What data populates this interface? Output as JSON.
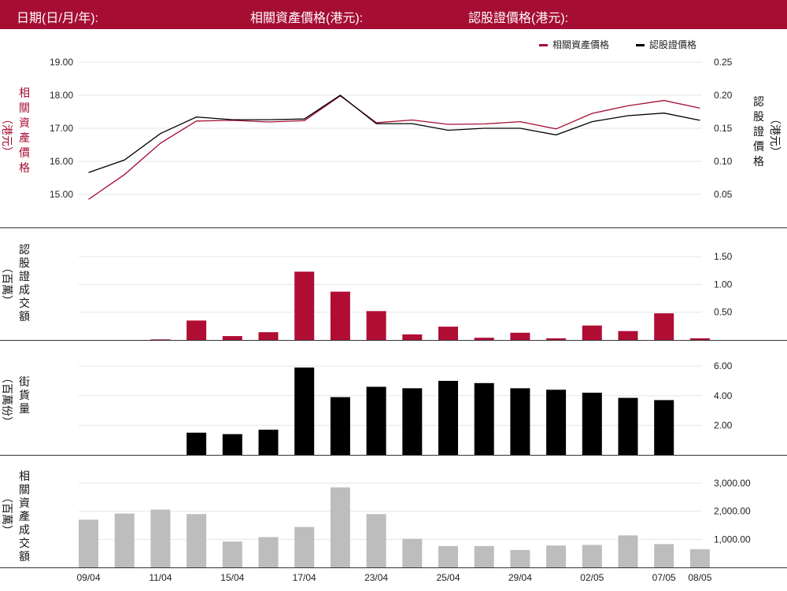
{
  "header": {
    "date_label": "日期(日/月/年):",
    "underlying_label": "相關資產價格(港元):",
    "warrant_label": "認股證價格(港元):"
  },
  "colors": {
    "header_bg": "#a50d33",
    "underlying": "#a50d33",
    "warrant": "#000000",
    "turnover_bar": "#b00d35",
    "outstanding_bar": "#000000",
    "underlying_turnover_bar": "#bdbdbd",
    "grid": "#e6e6e6"
  },
  "x_labels": [
    "09/04",
    "11/04",
    "15/04",
    "17/04",
    "23/04",
    "25/04",
    "29/04",
    "02/05",
    "07/05",
    "08/05"
  ],
  "chart_data": [
    {
      "type": "line",
      "legend": [
        "相關資產價格",
        "認股證價格"
      ],
      "legend_position": "top-right",
      "ylabel_left": [
        "相",
        "關",
        "資",
        "產",
        "價",
        "格",
        "（港元）"
      ],
      "ylabel_right": [
        "認",
        "股",
        "證",
        "價",
        "格",
        "（港元）"
      ],
      "y_left": {
        "min": 14.0,
        "max": 19.0,
        "ticks": [
          "15.00",
          "16.00",
          "17.00",
          "18.00",
          "19.00"
        ]
      },
      "y_right": {
        "min": 0.0,
        "max": 0.25,
        "ticks": [
          "0.05",
          "0.10",
          "0.15",
          "0.20",
          "0.25"
        ]
      },
      "series": [
        {
          "name": "相關資產價格",
          "axis": "left",
          "values": [
            14.85,
            15.6,
            16.55,
            17.22,
            17.24,
            17.19,
            17.23,
            17.98,
            17.17,
            17.25,
            17.12,
            17.13,
            17.2,
            16.98,
            17.45,
            17.68,
            17.84,
            17.61
          ]
        },
        {
          "name": "認股證價格",
          "axis": "right",
          "values": [
            0.083,
            0.102,
            0.142,
            0.167,
            0.163,
            0.163,
            0.164,
            0.2,
            0.157,
            0.157,
            0.147,
            0.15,
            0.15,
            0.14,
            0.16,
            0.169,
            0.173,
            0.162
          ]
        }
      ]
    },
    {
      "type": "bar",
      "ylabel_left": [
        "認",
        "股",
        "證",
        "成",
        "交",
        "額",
        "（百萬）"
      ],
      "y": {
        "min": 0,
        "max": 1.8,
        "ticks": [
          "0.50",
          "1.00",
          "1.50"
        ]
      },
      "values": [
        0,
        0,
        0.01,
        0.35,
        0.07,
        0.14,
        1.23,
        0.87,
        0.52,
        0.1,
        0.24,
        0.04,
        0.13,
        0.03,
        0.26,
        0.16,
        0.48,
        0.03
      ]
    },
    {
      "type": "bar",
      "ylabel_left": [
        "街",
        "貨",
        "量",
        "（百萬份）"
      ],
      "y": {
        "min": 0,
        "max": 6.7,
        "ticks": [
          "2.00",
          "4.00",
          "6.00"
        ]
      },
      "values": [
        0,
        0,
        0,
        1.5,
        1.4,
        1.7,
        5.9,
        3.9,
        4.6,
        4.5,
        5.0,
        4.85,
        4.5,
        4.4,
        4.2,
        3.85,
        3.7,
        0
      ]
    },
    {
      "type": "bar",
      "ylabel_left": [
        "相",
        "關",
        "資",
        "產",
        "成",
        "交",
        "額",
        "（百萬）"
      ],
      "y": {
        "min": 0,
        "max": 3450,
        "ticks": [
          "1,000.00",
          "2,000.00",
          "3,000.00"
        ]
      },
      "values": [
        1700,
        1920,
        2060,
        1900,
        920,
        1080,
        1440,
        2850,
        1900,
        1020,
        760,
        760,
        620,
        780,
        800,
        1140,
        830,
        650
      ]
    }
  ]
}
